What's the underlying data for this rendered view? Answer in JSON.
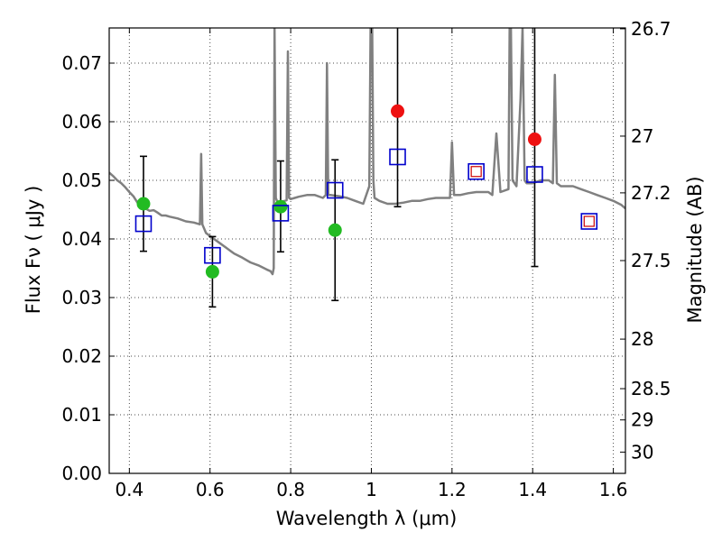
{
  "chart_data": {
    "type": "scatter",
    "xlabel": "Wavelength  λ (μm)",
    "ylabel": "Flux  Fν  ( μJy )",
    "y2label": "Magnitude (AB)",
    "xlim": [
      0.35,
      1.63
    ],
    "ylim": [
      0.0,
      0.076
    ],
    "grid": true,
    "x_ticks": [
      0.4,
      0.6,
      0.8,
      1.0,
      1.2,
      1.4,
      1.6
    ],
    "x_tick_labels": [
      "0.4",
      "0.6",
      "0.8",
      "1",
      "1.2",
      "1.4",
      "1.6"
    ],
    "y_ticks": [
      0.0,
      0.01,
      0.02,
      0.03,
      0.04,
      0.05,
      0.06,
      0.07
    ],
    "y_tick_labels": [
      "0.00",
      "0.01",
      "0.02",
      "0.03",
      "0.04",
      "0.05",
      "0.06",
      "0.07"
    ],
    "y2_ticks": [
      26.7,
      27,
      27.2,
      27.5,
      28,
      28.5,
      29,
      30
    ],
    "y2_tick_labels": [
      "26.7",
      "27",
      "27.2",
      "27.5",
      "28",
      "28.5",
      "29",
      "30"
    ],
    "colors": {
      "spectrum": "#808080",
      "green_points": "#22bb22",
      "red_points": "#ee1111",
      "model_squares": "#0000cc",
      "inner_squares": "#cc0000",
      "error_bars": "#000000"
    },
    "series": [
      {
        "marker": "circle-green",
        "points": [
          {
            "x": 0.435,
            "y": 0.046,
            "yerr_low": 0.0379,
            "yerr_high": 0.0541
          },
          {
            "x": 0.606,
            "y": 0.0344,
            "yerr_low": 0.0284,
            "yerr_high": 0.0404
          },
          {
            "x": 0.775,
            "y": 0.0455,
            "yerr_low": 0.0378,
            "yerr_high": 0.0533
          },
          {
            "x": 0.91,
            "y": 0.0415,
            "yerr_low": 0.0295,
            "yerr_high": 0.0535
          }
        ]
      },
      {
        "marker": "circle-red",
        "points": [
          {
            "x": 1.065,
            "y": 0.0618,
            "yerr_low": 0.0455,
            "yerr_high": 0.076
          },
          {
            "x": 1.405,
            "y": 0.057,
            "yerr_low": 0.0353,
            "yerr_high": 0.076
          }
        ]
      },
      {
        "marker": "open-square-blue",
        "points": [
          {
            "x": 0.435,
            "y": 0.0426
          },
          {
            "x": 0.606,
            "y": 0.0372
          },
          {
            "x": 0.775,
            "y": 0.0444
          },
          {
            "x": 0.91,
            "y": 0.0483
          },
          {
            "x": 1.065,
            "y": 0.054
          },
          {
            "x": 1.26,
            "y": 0.0515
          },
          {
            "x": 1.405,
            "y": 0.051
          },
          {
            "x": 1.54,
            "y": 0.043
          }
        ]
      },
      {
        "marker": "open-square-red-small",
        "points": [
          {
            "x": 1.26,
            "y": 0.0515
          },
          {
            "x": 1.54,
            "y": 0.043
          }
        ]
      }
    ],
    "spectrum": {
      "x": [
        0.35,
        0.36,
        0.37,
        0.38,
        0.39,
        0.4,
        0.41,
        0.42,
        0.43,
        0.44,
        0.45,
        0.46,
        0.47,
        0.48,
        0.49,
        0.5,
        0.52,
        0.54,
        0.56,
        0.575,
        0.578,
        0.581,
        0.59,
        0.6,
        0.62,
        0.64,
        0.66,
        0.68,
        0.7,
        0.72,
        0.74,
        0.75,
        0.755,
        0.758,
        0.76,
        0.763,
        0.766,
        0.77,
        0.78,
        0.79,
        0.793,
        0.796,
        0.8,
        0.81,
        0.82,
        0.84,
        0.86,
        0.88,
        0.887,
        0.89,
        0.893,
        0.9,
        0.92,
        0.94,
        0.96,
        0.98,
        0.995,
        0.998,
        1.002,
        1.005,
        1.008,
        1.02,
        1.04,
        1.06,
        1.08,
        1.1,
        1.12,
        1.14,
        1.16,
        1.18,
        1.195,
        1.2,
        1.205,
        1.22,
        1.24,
        1.26,
        1.28,
        1.29,
        1.3,
        1.31,
        1.32,
        1.34,
        1.343,
        1.346,
        1.35,
        1.36,
        1.37,
        1.375,
        1.38,
        1.385,
        1.39,
        1.4,
        1.42,
        1.44,
        1.45,
        1.455,
        1.46,
        1.47,
        1.48,
        1.5,
        1.52,
        1.54,
        1.56,
        1.58,
        1.6,
        1.62,
        1.63
      ],
      "y": [
        0.0513,
        0.0507,
        0.05,
        0.0495,
        0.0488,
        0.048,
        0.0473,
        0.0462,
        0.0455,
        0.0452,
        0.0448,
        0.0449,
        0.0445,
        0.044,
        0.044,
        0.0438,
        0.0435,
        0.043,
        0.0428,
        0.0425,
        0.0545,
        0.0425,
        0.041,
        0.0405,
        0.0395,
        0.0385,
        0.0375,
        0.0368,
        0.036,
        0.0355,
        0.0348,
        0.0345,
        0.034,
        0.035,
        0.076,
        0.047,
        0.0465,
        0.0462,
        0.0464,
        0.0466,
        0.072,
        0.047,
        0.0468,
        0.047,
        0.0472,
        0.0475,
        0.0475,
        0.047,
        0.0475,
        0.07,
        0.0475,
        0.0475,
        0.0473,
        0.047,
        0.0465,
        0.046,
        0.049,
        0.076,
        0.076,
        0.05,
        0.047,
        0.0465,
        0.046,
        0.046,
        0.0462,
        0.0465,
        0.0465,
        0.0468,
        0.047,
        0.047,
        0.047,
        0.0565,
        0.0475,
        0.0475,
        0.0478,
        0.048,
        0.048,
        0.048,
        0.0475,
        0.058,
        0.048,
        0.0485,
        0.076,
        0.076,
        0.05,
        0.049,
        0.064,
        0.076,
        0.05,
        0.0495,
        0.0495,
        0.0495,
        0.05,
        0.05,
        0.0495,
        0.068,
        0.0495,
        0.049,
        0.049,
        0.049,
        0.0485,
        0.048,
        0.0475,
        0.047,
        0.0465,
        0.0458,
        0.0452
      ]
    }
  }
}
